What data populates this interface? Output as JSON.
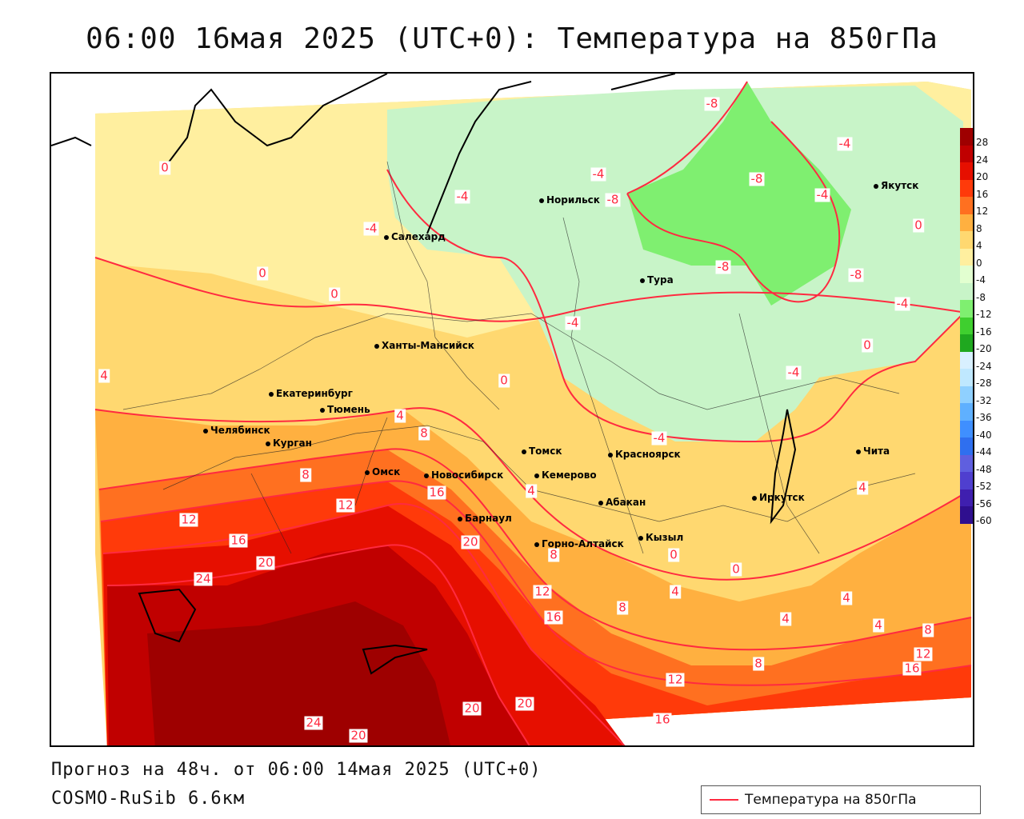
{
  "title": "06:00 16мая 2025 (UTC+0): Температура на 850гПа",
  "footer": {
    "forecast": "Прогноз на 48ч. от 06:00 14мая 2025 (UTC+0)",
    "model": "COSMO-RuSib 6.6км"
  },
  "legend": {
    "label": "Температура на 850гПа",
    "color": "#ff2a40"
  },
  "colors": {
    "contour": "#ff2a40",
    "warm": [
      "#ffef9f",
      "#ffd870",
      "#ffb040",
      "#ff7020",
      "#ff3a0a",
      "#e60f00",
      "#c00000",
      "#9e0000"
    ],
    "cold": [
      "#c8f4c8",
      "#7fef70",
      "#3fcf2f",
      "#1fa81f",
      "#bfe8ff",
      "#8fd0ff",
      "#5fb0ff"
    ]
  },
  "colorbar": {
    "ticks": [
      "28",
      "24",
      "20",
      "16",
      "12",
      "8",
      "4",
      "0",
      "-4",
      "-8",
      "-12",
      "-16",
      "-20",
      "-24",
      "-28",
      "-32",
      "-36",
      "-40",
      "-44",
      "-48",
      "-52",
      "-56",
      "-60"
    ],
    "segments": [
      "#9e0000",
      "#c00000",
      "#e60f00",
      "#ff3a0a",
      "#ff7020",
      "#ffb040",
      "#ffd870",
      "#ffef9f",
      "#e2ffd0",
      "#c8f4c8",
      "#7fef70",
      "#3fcf2f",
      "#1fa81f",
      "#d8f0ff",
      "#bfe8ff",
      "#8fd0ff",
      "#5fb0ff",
      "#3f8fff",
      "#2f6fef",
      "#5f5fdf",
      "#4f3fcf",
      "#3f1faf",
      "#2f0f8f"
    ]
  },
  "cities": [
    {
      "name": "Норильск",
      "icon": "city-dot-icon"
    },
    {
      "name": "Якутск",
      "icon": "city-dot-icon"
    },
    {
      "name": "Салехард",
      "icon": "city-dot-icon"
    },
    {
      "name": "Тура",
      "icon": "city-dot-icon"
    },
    {
      "name": "Ханты-Мансийск",
      "icon": "city-dot-icon"
    },
    {
      "name": "Екатеринбург",
      "icon": "city-dot-icon"
    },
    {
      "name": "Тюмень",
      "icon": "city-dot-icon"
    },
    {
      "name": "Челябинск",
      "icon": "city-dot-icon"
    },
    {
      "name": "Курган",
      "icon": "city-dot-icon"
    },
    {
      "name": "Омск",
      "icon": "city-dot-icon"
    },
    {
      "name": "Новосибирск",
      "icon": "city-dot-icon"
    },
    {
      "name": "Томск",
      "icon": "city-dot-icon"
    },
    {
      "name": "Кемерово",
      "icon": "city-dot-icon"
    },
    {
      "name": "Красноярск",
      "icon": "city-dot-icon"
    },
    {
      "name": "Барнаул",
      "icon": "city-dot-icon"
    },
    {
      "name": "Абакан",
      "icon": "city-dot-icon"
    },
    {
      "name": "Горно-Алтайск",
      "icon": "city-dot-icon"
    },
    {
      "name": "Кызыл",
      "icon": "city-dot-icon"
    },
    {
      "name": "Иркутск",
      "icon": "city-dot-icon"
    },
    {
      "name": "Чита",
      "icon": "city-dot-icon"
    }
  ],
  "contour_labels": [
    "-8",
    "-4",
    "-8",
    "-4",
    "-8",
    "-4",
    "-4",
    "-8",
    "-8",
    "-4",
    "0",
    "-4",
    "-4",
    "0",
    "-4",
    "0",
    "0",
    "0",
    "4",
    "4",
    "8",
    "-4",
    "0",
    "4",
    "4",
    "8",
    "12",
    "16",
    "12",
    "16",
    "20",
    "24",
    "20",
    "8",
    "12",
    "16",
    "8",
    "4",
    "4",
    "0",
    "0",
    "4",
    "4",
    "8",
    "12",
    "8",
    "16",
    "12",
    "16",
    "20",
    "20",
    "24",
    "20"
  ]
}
